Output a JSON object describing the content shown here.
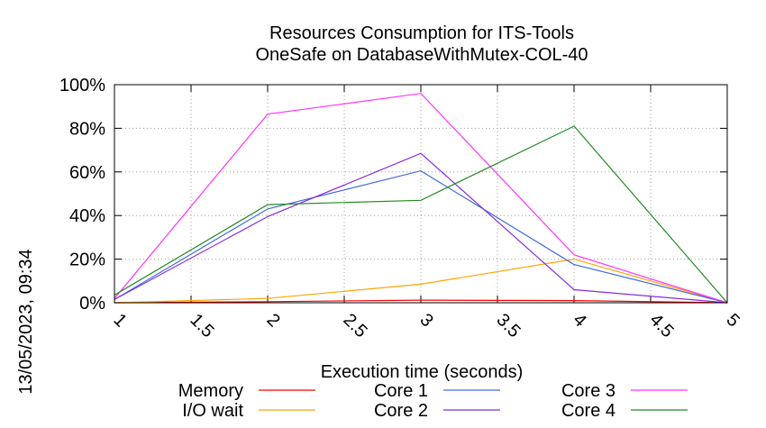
{
  "chart_data": {
    "type": "line",
    "title": [
      "Resources Consumption for ITS-Tools",
      "OneSafe on DatabaseWithMutex-COL-40"
    ],
    "xlabel": "Execution time (seconds)",
    "ylabel": "",
    "xlim": [
      1,
      5
    ],
    "ylim": [
      0,
      100
    ],
    "x_ticks": [
      "1",
      "1.5",
      "2",
      "2.5",
      "3",
      "3.5",
      "4",
      "4.5",
      "5"
    ],
    "y_ticks": [
      "0%",
      "20%",
      "40%",
      "60%",
      "80%",
      "100%"
    ],
    "grid": true,
    "legend_position": "bottom",
    "x": [
      1,
      2,
      3,
      4,
      5
    ],
    "series": [
      {
        "name": "Memory",
        "color": "#ff0000",
        "values": [
          0,
          0.5,
          1.2,
          1.0,
          0
        ]
      },
      {
        "name": "I/O wait",
        "color": "#ffa500",
        "values": [
          0,
          2,
          8.5,
          20,
          0
        ]
      },
      {
        "name": "Core 1",
        "color": "#4169e1",
        "values": [
          1.5,
          43,
          60.5,
          17.5,
          0
        ]
      },
      {
        "name": "Core 2",
        "color": "#8a2be2",
        "values": [
          1.5,
          39.5,
          68.5,
          6,
          0
        ]
      },
      {
        "name": "Core 3",
        "color": "#ff33ff",
        "values": [
          2,
          86.5,
          96,
          22,
          0
        ]
      },
      {
        "name": "Core 4",
        "color": "#228b22",
        "values": [
          3.5,
          45,
          47,
          81,
          0
        ]
      }
    ]
  },
  "stamp": "13/05/2023, 09:34"
}
